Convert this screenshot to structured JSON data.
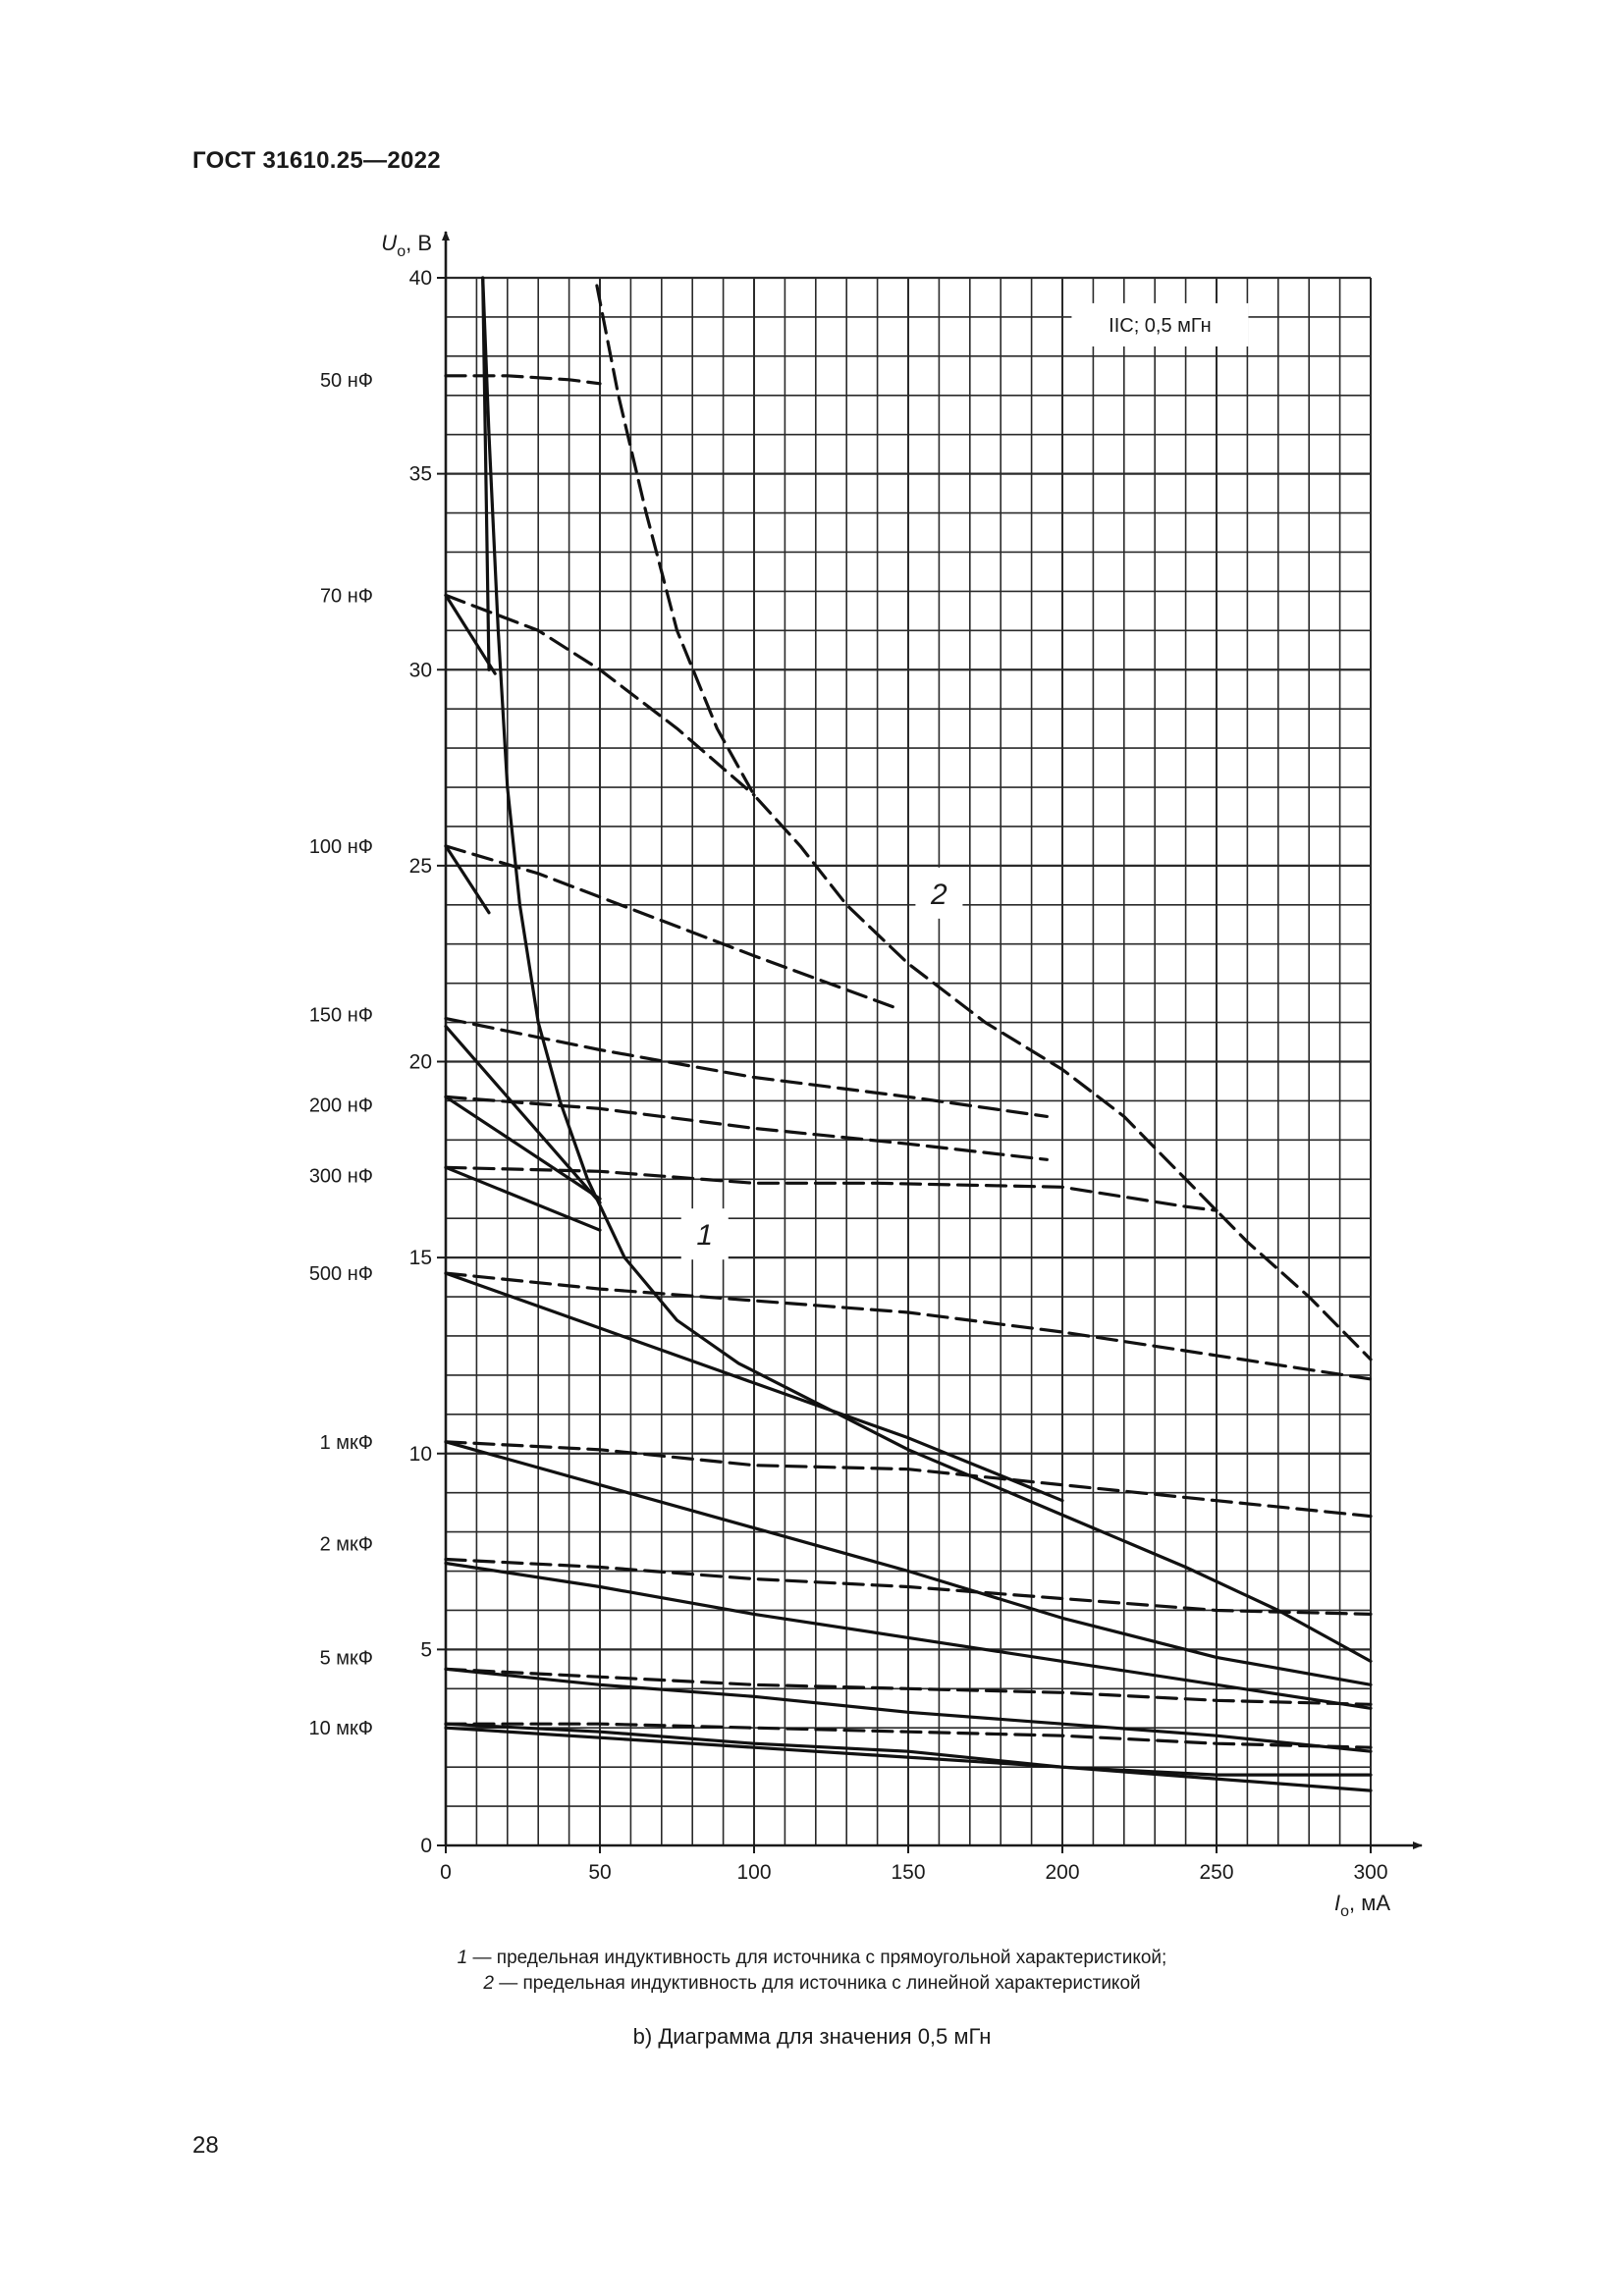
{
  "header": {
    "doc_id": "ГОСТ 31610.25—2022"
  },
  "page_number": "28",
  "legend": [
    {
      "num": "1",
      "text": " — предельная индуктивность для источника с прямоугольной характеристикой;"
    },
    {
      "num": "2",
      "text": " — предельная индуктивность для источника с линейной характеристикой"
    }
  ],
  "caption": "b) Диаграмма для значения 0,5 мГн",
  "chart_data": {
    "type": "line",
    "inset_label": "IIC; 0,5 мГн",
    "y_axis": {
      "var": "U",
      "sub": "o",
      "unit": ", В",
      "ticks": [
        "0",
        "5",
        "10",
        "15",
        "20",
        "25",
        "30",
        "35",
        "40"
      ],
      "ylim": [
        0,
        40
      ]
    },
    "x_axis": {
      "var": "I",
      "sub": "o",
      "unit": ", мА",
      "ticks": [
        "0",
        "50",
        "100",
        "150",
        "200",
        "250",
        "300"
      ],
      "xlim": [
        0,
        300
      ]
    },
    "capacitance_labels": [
      {
        "text": "50 нФ",
        "u": 37.4
      },
      {
        "text": "70 нФ",
        "u": 31.9
      },
      {
        "text": "100 нФ",
        "u": 25.5
      },
      {
        "text": "150 нФ",
        "u": 21.2
      },
      {
        "text": "200 нФ",
        "u": 18.9
      },
      {
        "text": "300 нФ",
        "u": 17.1
      },
      {
        "text": "500 нФ",
        "u": 14.6
      },
      {
        "text": "1 мкФ",
        "u": 10.3
      },
      {
        "text": "2 мкФ",
        "u": 7.7
      },
      {
        "text": "5 мкФ",
        "u": 4.8
      },
      {
        "text": "10 мкФ",
        "u": 3.0
      }
    ],
    "series": [
      {
        "name": "1",
        "style": "solid",
        "points": [
          [
            12,
            40
          ],
          [
            14,
            36
          ],
          [
            17,
            31
          ],
          [
            20,
            27
          ],
          [
            24,
            24
          ],
          [
            30,
            21
          ],
          [
            37,
            19
          ],
          [
            46,
            17
          ],
          [
            58,
            15
          ],
          [
            75,
            13.4
          ],
          [
            95,
            12.3
          ],
          [
            120,
            11.3
          ],
          [
            150,
            10.1
          ],
          [
            180,
            9.1
          ],
          [
            210,
            8.1
          ],
          [
            240,
            7.1
          ],
          [
            270,
            6
          ],
          [
            300,
            4.7
          ]
        ]
      },
      {
        "name": "2",
        "style": "dashed",
        "points": [
          [
            49,
            39.8
          ],
          [
            56,
            37
          ],
          [
            65,
            34
          ],
          [
            75,
            31
          ],
          [
            88,
            28.5
          ],
          [
            100,
            26.8
          ],
          [
            115,
            25.5
          ],
          [
            130,
            24
          ],
          [
            150,
            22.5
          ],
          [
            175,
            21
          ],
          [
            200,
            19.8
          ],
          [
            220,
            18.6
          ],
          [
            240,
            17
          ],
          [
            260,
            15.4
          ],
          [
            280,
            14
          ],
          [
            300,
            12.4
          ]
        ]
      },
      {
        "style": "dashed",
        "points": [
          [
            0,
            37.5
          ],
          [
            20,
            37.5
          ],
          [
            40,
            37.4
          ],
          [
            50,
            37.3
          ]
        ]
      },
      {
        "style": "solid",
        "points": [
          [
            12,
            40
          ],
          [
            14,
            30
          ]
        ]
      },
      {
        "style": "solid",
        "points": [
          [
            0,
            31.9
          ],
          [
            16,
            29.9
          ]
        ]
      },
      {
        "style": "dashed",
        "points": [
          [
            0,
            31.9
          ],
          [
            30,
            31
          ],
          [
            50,
            30
          ],
          [
            75,
            28.5
          ],
          [
            100,
            26.8
          ]
        ]
      },
      {
        "style": "solid",
        "points": [
          [
            0,
            25.5
          ],
          [
            14,
            23.8
          ]
        ]
      },
      {
        "style": "dashed",
        "points": [
          [
            0,
            25.5
          ],
          [
            30,
            24.8
          ],
          [
            60,
            23.9
          ],
          [
            100,
            22.7
          ],
          [
            145,
            21.4
          ]
        ]
      },
      {
        "style": "solid",
        "points": [
          [
            0,
            20.9
          ],
          [
            50,
            16.4
          ]
        ]
      },
      {
        "style": "dashed",
        "points": [
          [
            0,
            21.1
          ],
          [
            50,
            20.3
          ],
          [
            100,
            19.6
          ],
          [
            150,
            19.1
          ],
          [
            195,
            18.6
          ]
        ]
      },
      {
        "style": "solid",
        "points": [
          [
            0,
            19.1
          ],
          [
            50,
            16.5
          ]
        ]
      },
      {
        "style": "dashed",
        "points": [
          [
            0,
            19.1
          ],
          [
            50,
            18.8
          ],
          [
            100,
            18.3
          ],
          [
            150,
            17.9
          ],
          [
            195,
            17.5
          ]
        ]
      },
      {
        "style": "solid",
        "points": [
          [
            0,
            17.3
          ],
          [
            50,
            15.7
          ]
        ]
      },
      {
        "style": "dashed",
        "points": [
          [
            0,
            17.3
          ],
          [
            50,
            17.2
          ],
          [
            100,
            16.9
          ],
          [
            140,
            16.9
          ],
          [
            200,
            16.8
          ],
          [
            240,
            16.3
          ],
          [
            250,
            16.2
          ]
        ]
      },
      {
        "style": "solid",
        "points": [
          [
            0,
            14.6
          ],
          [
            50,
            13.2
          ],
          [
            100,
            11.8
          ],
          [
            150,
            10.4
          ],
          [
            200,
            8.8
          ]
        ]
      },
      {
        "style": "dashed",
        "points": [
          [
            0,
            14.6
          ],
          [
            50,
            14.2
          ],
          [
            100,
            13.9
          ],
          [
            150,
            13.6
          ],
          [
            200,
            13.1
          ],
          [
            250,
            12.5
          ],
          [
            300,
            11.9
          ]
        ]
      },
      {
        "style": "solid",
        "points": [
          [
            0,
            10.3
          ],
          [
            50,
            9.2
          ],
          [
            100,
            8.1
          ],
          [
            150,
            7
          ],
          [
            200,
            5.8
          ],
          [
            250,
            4.8
          ],
          [
            300,
            4.1
          ]
        ]
      },
      {
        "style": "dashed",
        "points": [
          [
            0,
            10.3
          ],
          [
            50,
            10.1
          ],
          [
            100,
            9.7
          ],
          [
            150,
            9.6
          ],
          [
            200,
            9.2
          ],
          [
            250,
            8.8
          ],
          [
            300,
            8.4
          ]
        ]
      },
      {
        "style": "solid",
        "points": [
          [
            0,
            7.2
          ],
          [
            50,
            6.6
          ],
          [
            100,
            5.9
          ],
          [
            150,
            5.3
          ],
          [
            200,
            4.7
          ],
          [
            250,
            4.1
          ],
          [
            300,
            3.5
          ]
        ]
      },
      {
        "style": "dashed",
        "points": [
          [
            0,
            7.3
          ],
          [
            50,
            7.1
          ],
          [
            100,
            6.8
          ],
          [
            150,
            6.6
          ],
          [
            200,
            6.3
          ],
          [
            250,
            6
          ],
          [
            300,
            5.9
          ]
        ]
      },
      {
        "style": "solid",
        "points": [
          [
            0,
            4.5
          ],
          [
            50,
            4.1
          ],
          [
            100,
            3.8
          ],
          [
            150,
            3.4
          ],
          [
            200,
            3.1
          ],
          [
            250,
            2.8
          ],
          [
            300,
            2.4
          ]
        ]
      },
      {
        "style": "dashed",
        "points": [
          [
            0,
            4.5
          ],
          [
            50,
            4.3
          ],
          [
            100,
            4.1
          ],
          [
            150,
            4
          ],
          [
            200,
            3.9
          ],
          [
            250,
            3.7
          ],
          [
            300,
            3.6
          ]
        ]
      },
      {
        "style": "solid",
        "points": [
          [
            0,
            3.1
          ],
          [
            50,
            2.9
          ],
          [
            100,
            2.6
          ],
          [
            150,
            2.4
          ],
          [
            200,
            2
          ],
          [
            250,
            1.8
          ],
          [
            300,
            1.8
          ]
        ]
      },
      {
        "style": "dashed",
        "points": [
          [
            0,
            3.1
          ],
          [
            50,
            3.1
          ],
          [
            100,
            3
          ],
          [
            150,
            2.9
          ],
          [
            200,
            2.8
          ],
          [
            250,
            2.6
          ],
          [
            300,
            2.5
          ]
        ]
      },
      {
        "style": "solid",
        "points": [
          [
            0,
            3
          ],
          [
            100,
            2.5
          ],
          [
            200,
            2
          ],
          [
            300,
            1.4
          ]
        ]
      }
    ],
    "curve_labels": [
      {
        "text": "1",
        "x": 84,
        "y": 15.6
      },
      {
        "text": "2",
        "x": 160,
        "y": 24.3
      }
    ],
    "grid": true
  }
}
